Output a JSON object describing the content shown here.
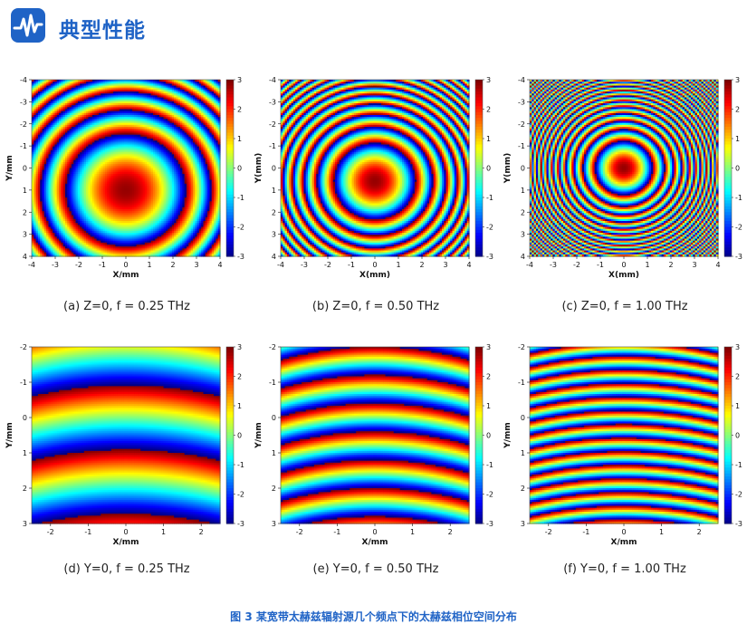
{
  "header": {
    "title": "典型性能",
    "logo_icon": "waveform-logo-icon"
  },
  "figure_caption": "图 3 某宽带太赫兹辐射源几个频点下的太赫兹相位空间分布",
  "colormap": "jet",
  "chart_data": [
    {
      "type": "heatmap",
      "caption": "(a) Z=0, f = 0.25 THz",
      "xlabel": "X/mm",
      "ylabel": "Y/mm",
      "xlim": [
        -4,
        4
      ],
      "ylim": [
        -4,
        4
      ],
      "xticks": [
        "-4",
        "-3",
        "-2",
        "-1",
        "0",
        "1",
        "2",
        "3",
        "4"
      ],
      "yticks": [
        "-4",
        "-3",
        "-2",
        "-1",
        "0",
        "1",
        "2",
        "3",
        "4"
      ],
      "colorbar": {
        "range": [
          -3,
          3
        ],
        "ticks": [
          "3",
          "2",
          "1",
          "0",
          "-1",
          "-2",
          "-3"
        ]
      },
      "pattern": {
        "kind": "radial",
        "center": [
          0,
          1
        ],
        "phase_wraps": 0.6
      }
    },
    {
      "type": "heatmap",
      "caption": "(b) Z=0, f = 0.50 THz",
      "xlabel": "X(mm)",
      "ylabel": "Y(mm)",
      "xlim": [
        -4,
        4
      ],
      "ylim": [
        -4,
        4
      ],
      "xticks": [
        "-4",
        "-3",
        "-2",
        "-1",
        "0",
        "1",
        "2",
        "3",
        "4"
      ],
      "yticks": [
        "-4",
        "-3",
        "-2",
        "-1",
        "0",
        "1",
        "2",
        "3",
        "4"
      ],
      "colorbar": {
        "range": [
          -3,
          3
        ],
        "ticks": [
          "3",
          "2",
          "1",
          "0",
          "-1",
          "-2",
          "-3"
        ]
      },
      "pattern": {
        "kind": "radial",
        "center": [
          0,
          0.6
        ],
        "phase_wraps": 1.3
      }
    },
    {
      "type": "heatmap",
      "caption": "(c) Z=0, f = 1.00 THz",
      "xlabel": "X(mm)",
      "ylabel": "Y(mm)",
      "xlim": [
        -4,
        4
      ],
      "ylim": [
        -4,
        4
      ],
      "xticks": [
        "-4",
        "-3",
        "-2",
        "-1",
        "0",
        "1",
        "2",
        "3",
        "4"
      ],
      "yticks": [
        "-4",
        "-3",
        "-2",
        "-1",
        "0",
        "1",
        "2",
        "3",
        "4"
      ],
      "colorbar": {
        "range": [
          -3,
          3
        ],
        "ticks": [
          "3",
          "2",
          "1",
          "0",
          "-1",
          "-2",
          "-3"
        ]
      },
      "pattern": {
        "kind": "radial",
        "center": [
          0,
          0
        ],
        "phase_wraps": 2.6
      }
    },
    {
      "type": "heatmap",
      "caption": "(d) Y=0, f = 0.25 THz",
      "xlabel": "X/mm",
      "ylabel": "Y/mm",
      "xlim": [
        -2.5,
        2.5
      ],
      "ylim": [
        -2,
        3
      ],
      "xticks": [
        "-2",
        "-1",
        "0",
        "1",
        "2"
      ],
      "yticks": [
        "-2",
        "-1",
        "0",
        "1",
        "2",
        "3"
      ],
      "colorbar": {
        "range": [
          -3,
          3
        ],
        "ticks": [
          "3",
          "2",
          "1",
          "0",
          "-1",
          "-2",
          "-3"
        ]
      },
      "pattern": {
        "kind": "bands",
        "bands_per_unit": 0.55,
        "curvature": 0.05
      }
    },
    {
      "type": "heatmap",
      "caption": "(e) Y=0, f = 0.50 THz",
      "xlabel": "X/mm",
      "ylabel": "Y/mm",
      "xlim": [
        -2.5,
        2.5
      ],
      "ylim": [
        -2,
        3
      ],
      "xticks": [
        "-2",
        "-1",
        "0",
        "1",
        "2"
      ],
      "yticks": [
        "-2",
        "-1",
        "0",
        "1",
        "2",
        "3"
      ],
      "colorbar": {
        "range": [
          -3,
          3
        ],
        "ticks": [
          "3",
          "2",
          "1",
          "0",
          "-1",
          "-2",
          "-3"
        ]
      },
      "pattern": {
        "kind": "bands",
        "bands_per_unit": 1.25,
        "curvature": 0.06
      }
    },
    {
      "type": "heatmap",
      "caption": "(f) Y=0, f = 1.00 THz",
      "xlabel": "X/mm",
      "ylabel": "Y/mm",
      "xlim": [
        -2.5,
        2.5
      ],
      "ylim": [
        -2,
        3
      ],
      "xticks": [
        "-2",
        "-1",
        "0",
        "1",
        "2"
      ],
      "yticks": [
        "-2",
        "-1",
        "0",
        "1",
        "2",
        "3"
      ],
      "colorbar": {
        "range": [
          -3,
          3
        ],
        "ticks": [
          "3",
          "2",
          "1",
          "0",
          "-1",
          "-2",
          "-3"
        ]
      },
      "pattern": {
        "kind": "bands",
        "bands_per_unit": 2.6,
        "curvature": 0.05
      }
    }
  ]
}
